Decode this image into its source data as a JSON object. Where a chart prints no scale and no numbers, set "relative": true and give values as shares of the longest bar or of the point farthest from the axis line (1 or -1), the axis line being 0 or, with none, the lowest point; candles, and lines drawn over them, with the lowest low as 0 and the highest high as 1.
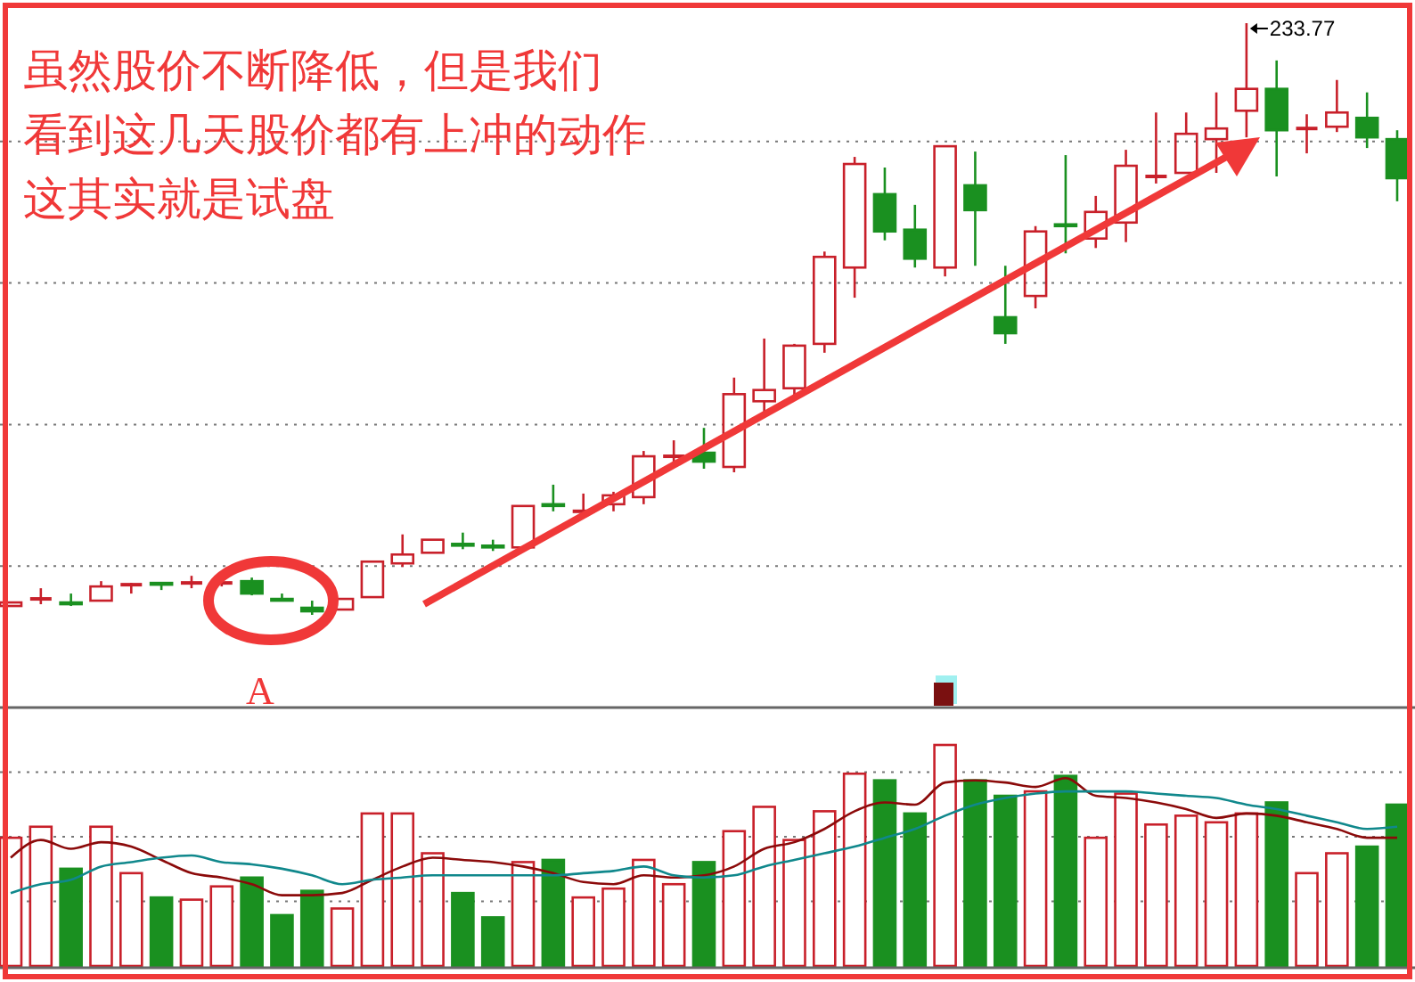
{
  "chart_data": [
    {
      "type": "candlestick",
      "relative": true,
      "grid": true,
      "categories": [
        null,
        null,
        null,
        null,
        null,
        null,
        null,
        null,
        null,
        null,
        null,
        null,
        null,
        null,
        null,
        null,
        null,
        null,
        null,
        null,
        null,
        null,
        null,
        null,
        null,
        null,
        null,
        null,
        null,
        null,
        null,
        null,
        null,
        null,
        null,
        null,
        null,
        null,
        null,
        null,
        null,
        null,
        null,
        null,
        null,
        null,
        null
      ],
      "ohlc": [
        [
          0.015,
          0.021,
          0.015,
          0.021
        ],
        [
          0.027,
          0.045,
          0.018,
          0.027
        ],
        [
          0.021,
          0.036,
          0.015,
          0.018
        ],
        [
          0.024,
          0.057,
          0.024,
          0.048
        ],
        [
          0.051,
          0.054,
          0.036,
          0.051
        ],
        [
          0.054,
          0.054,
          0.042,
          0.051
        ],
        [
          0.054,
          0.066,
          0.045,
          0.054
        ],
        [
          0.054,
          0.054,
          0.048,
          0.054
        ],
        [
          0.057,
          0.063,
          0.033,
          0.036
        ],
        [
          0.027,
          0.036,
          0.024,
          0.024
        ],
        [
          0.012,
          0.024,
          0,
          0.006
        ],
        [
          0.009,
          0.027,
          0.009,
          0.027
        ],
        [
          0.03,
          0.09,
          0.03,
          0.09
        ],
        [
          0.087,
          0.136,
          0.081,
          0.102
        ],
        [
          0.105,
          0.127,
          0.105,
          0.127
        ],
        [
          0.12,
          0.139,
          0.111,
          0.117
        ],
        [
          0.117,
          0.127,
          0.108,
          0.114
        ],
        [
          0.114,
          0.184,
          0.114,
          0.184
        ],
        [
          0.187,
          0.22,
          0.175,
          0.184
        ],
        [
          0.175,
          0.205,
          0.166,
          0.175
        ],
        [
          0.187,
          0.208,
          0.175,
          0.202
        ],
        [
          0.199,
          0.277,
          0.187,
          0.268
        ],
        [
          0.268,
          0.295,
          0.256,
          0.268
        ],
        [
          0.274,
          0.316,
          0.247,
          0.259
        ],
        [
          0.25,
          0.401,
          0.241,
          0.373
        ],
        [
          0.361,
          0.467,
          0.337,
          0.38
        ],
        [
          0.383,
          0.458,
          0.37,
          0.455
        ],
        [
          0.458,
          0.614,
          0.443,
          0.605
        ],
        [
          0.587,
          0.774,
          0.536,
          0.762
        ],
        [
          0.711,
          0.756,
          0.633,
          0.648
        ],
        [
          0.651,
          0.693,
          0.587,
          0.602
        ],
        [
          0.587,
          0.792,
          0.572,
          0.792
        ],
        [
          0.726,
          0.783,
          0.59,
          0.684
        ],
        [
          0.503,
          0.59,
          0.458,
          0.476
        ],
        [
          0.539,
          0.657,
          0.518,
          0.648
        ],
        [
          0.66,
          0.777,
          0.611,
          0.657
        ],
        [
          0.636,
          0.708,
          0.62,
          0.681
        ],
        [
          0.663,
          0.786,
          0.63,
          0.759
        ],
        [
          0.741,
          0.849,
          0.729,
          0.741
        ],
        [
          0.747,
          0.849,
          0.747,
          0.813
        ],
        [
          0.804,
          0.883,
          0.747,
          0.822
        ],
        [
          0.852,
          1,
          0.807,
          0.889
        ],
        [
          0.889,
          0.937,
          0.741,
          0.819
        ],
        [
          0.822,
          0.846,
          0.78,
          0.822
        ],
        [
          0.825,
          0.904,
          0.816,
          0.849
        ],
        [
          0.84,
          0.883,
          0.789,
          0.807
        ],
        [
          0.804,
          0.819,
          0.699,
          0.738
        ]
      ],
      "colors": [
        "#c8202a",
        "#c8202a",
        "#1a9020",
        "#c8202a",
        "#c8202a",
        "#1a9020",
        "#c8202a",
        "#c8202a",
        "#1a9020",
        "#1a9020",
        "#1a9020",
        "#c8202a",
        "#c8202a",
        "#c8202a",
        "#c8202a",
        "#1a9020",
        "#1a9020",
        "#c8202a",
        "#1a9020",
        "#c8202a",
        "#c8202a",
        "#c8202a",
        "#c8202a",
        "#1a9020",
        "#c8202a",
        "#c8202a",
        "#c8202a",
        "#c8202a",
        "#c8202a",
        "#1a9020",
        "#1a9020",
        "#c8202a",
        "#1a9020",
        "#1a9020",
        "#c8202a",
        "#1a9020",
        "#c8202a",
        "#c8202a",
        "#c8202a",
        "#c8202a",
        "#c8202a",
        "#c8202a",
        "#1a9020",
        "#c8202a",
        "#c8202a",
        "#1a9020",
        "#1a9020"
      ],
      "annotations": [
        "虽然股价不断降低，但是我们",
        "看到这几天股价都有上冲的动作",
        "这其实就是试盘",
        "A",
        "233.77"
      ]
    },
    {
      "type": "bar",
      "relative": true,
      "grid": true,
      "categories": [
        null,
        null,
        null,
        null,
        null,
        null,
        null,
        null,
        null,
        null,
        null,
        null,
        null,
        null,
        null,
        null,
        null,
        null,
        null,
        null,
        null,
        null,
        null,
        null,
        null,
        null,
        null,
        null,
        null,
        null,
        null,
        null,
        null,
        null,
        null,
        null,
        null,
        null,
        null,
        null,
        null,
        null,
        null,
        null,
        null,
        null,
        null
      ],
      "series": [
        {
          "type": "bar",
          "values": [
            0.58,
            0.63,
            0.44,
            0.63,
            0.42,
            0.31,
            0.3,
            0.36,
            0.4,
            0.23,
            0.34,
            0.26,
            0.69,
            0.69,
            0.51,
            0.33,
            0.22,
            0.47,
            0.48,
            0.31,
            0.35,
            0.48,
            0.37,
            0.47,
            0.61,
            0.72,
            0.57,
            0.7,
            0.87,
            0.84,
            0.69,
            1,
            0.84,
            0.77,
            0.79,
            0.86,
            0.58,
            0.78,
            0.64,
            0.68,
            0.65,
            0.69,
            0.74,
            0.42,
            0.51,
            0.54,
            0.73
          ],
          "colors": [
            "#c8202a",
            "#c8202a",
            "#1a9020",
            "#c8202a",
            "#c8202a",
            "#1a9020",
            "#c8202a",
            "#c8202a",
            "#1a9020",
            "#1a9020",
            "#1a9020",
            "#c8202a",
            "#c8202a",
            "#c8202a",
            "#c8202a",
            "#1a9020",
            "#1a9020",
            "#c8202a",
            "#1a9020",
            "#c8202a",
            "#c8202a",
            "#c8202a",
            "#c8202a",
            "#1a9020",
            "#c8202a",
            "#c8202a",
            "#c8202a",
            "#c8202a",
            "#c8202a",
            "#1a9020",
            "#1a9020",
            "#c8202a",
            "#1a9020",
            "#1a9020",
            "#c8202a",
            "#1a9020",
            "#c8202a",
            "#c8202a",
            "#c8202a",
            "#c8202a",
            "#c8202a",
            "#c8202a",
            "#1a9020",
            "#c8202a",
            "#c8202a",
            "#1a9020",
            "#1a9020"
          ]
        },
        {
          "type": "line",
          "color": "#8b0a0a",
          "values": [
            0.49,
            0.57,
            0.53,
            0.56,
            0.54,
            0.48,
            0.42,
            0.4,
            0.37,
            0.32,
            0.32,
            0.33,
            0.39,
            0.45,
            0.49,
            0.48,
            0.47,
            0.45,
            0.42,
            0.38,
            0.37,
            0.41,
            0.4,
            0.41,
            0.45,
            0.53,
            0.56,
            0.62,
            0.7,
            0.74,
            0.73,
            0.83,
            0.84,
            0.83,
            0.81,
            0.85,
            0.77,
            0.76,
            0.74,
            0.71,
            0.67,
            0.69,
            0.68,
            0.65,
            0.62,
            0.58,
            0.58
          ]
        },
        {
          "type": "line",
          "color": "#10888c",
          "values": [
            0.33,
            0.37,
            0.39,
            0.45,
            0.47,
            0.49,
            0.5,
            0.47,
            0.46,
            0.44,
            0.41,
            0.37,
            0.39,
            0.4,
            0.41,
            0.41,
            0.41,
            0.41,
            0.41,
            0.42,
            0.43,
            0.45,
            0.41,
            0.4,
            0.41,
            0.45,
            0.48,
            0.51,
            0.54,
            0.58,
            0.62,
            0.68,
            0.73,
            0.76,
            0.78,
            0.79,
            0.79,
            0.79,
            0.78,
            0.77,
            0.76,
            0.73,
            0.71,
            0.68,
            0.65,
            0.62,
            0.63
          ]
        }
      ]
    }
  ]
}
